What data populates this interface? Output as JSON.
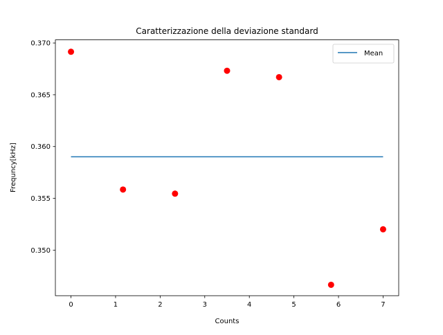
{
  "chart_data": {
    "type": "scatter",
    "title": "Caratterizzazione della deviazione standard",
    "xlabel": "Counts",
    "ylabel": "Frequncy[kHz]",
    "xlim": [
      -0.35,
      7.35
    ],
    "ylim": [
      0.3456,
      0.3703
    ],
    "xticks": [
      0,
      1,
      2,
      3,
      4,
      5,
      6,
      7
    ],
    "xtick_labels": [
      "0",
      "1",
      "2",
      "3",
      "4",
      "5",
      "6",
      "7"
    ],
    "yticks": [
      0.35,
      0.355,
      0.36,
      0.365,
      0.37
    ],
    "ytick_labels": [
      "0.350",
      "0.355",
      "0.360",
      "0.365",
      "0.370"
    ],
    "grid": false,
    "legend_position": "upper right",
    "series": [
      {
        "name": "Mean",
        "kind": "line",
        "color": "#1f77b4",
        "x": [
          0,
          7
        ],
        "y": [
          0.35901,
          0.35901
        ]
      },
      {
        "kind": "scatter",
        "color": "#ff0000",
        "x": [
          0,
          1.1667,
          2.3333,
          3.5,
          4.6667,
          5.8333,
          7
        ],
        "y": [
          0.36915,
          0.35585,
          0.35545,
          0.36732,
          0.3667,
          0.34665,
          0.35201
        ]
      }
    ]
  }
}
